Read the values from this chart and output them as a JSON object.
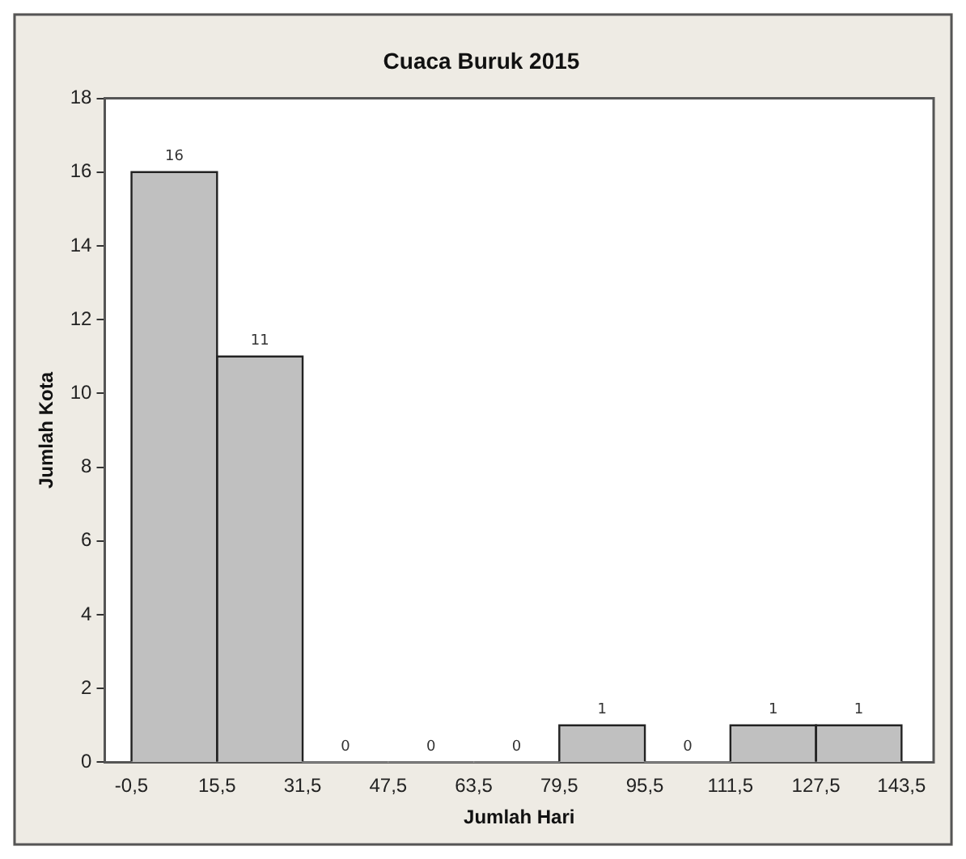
{
  "chart_data": {
    "type": "histogram",
    "title": "Cuaca Buruk 2015",
    "xlabel": "Jumlah Hari",
    "ylabel": "Jumlah Kota",
    "bins": [
      -0.5,
      15.5,
      31.5,
      47.5,
      63.5,
      79.5,
      95.5,
      111.5,
      127.5,
      143.5
    ],
    "values": [
      16,
      11,
      0,
      0,
      0,
      1,
      0,
      1,
      1
    ],
    "color": "#c0c0c0",
    "xlim": [
      -5.5,
      149.5
    ],
    "xticks": [
      {
        "value": -0.5,
        "label": "-0,5"
      },
      {
        "value": 15.5,
        "label": "15,5"
      },
      {
        "value": 31.5,
        "label": "31,5"
      },
      {
        "value": 47.5,
        "label": "47,5"
      },
      {
        "value": 63.5,
        "label": "63,5"
      },
      {
        "value": 79.5,
        "label": "79,5"
      },
      {
        "value": 95.5,
        "label": "95,5"
      },
      {
        "value": 111.5,
        "label": "111,5"
      },
      {
        "value": 127.5,
        "label": "127,5"
      },
      {
        "value": 143.5,
        "label": "143,5"
      }
    ],
    "ylim": [
      0,
      18
    ],
    "yticks": [
      0,
      2,
      4,
      6,
      8,
      10,
      12,
      14,
      16,
      18
    ],
    "data_labels": true,
    "grid": false,
    "legend": false
  }
}
